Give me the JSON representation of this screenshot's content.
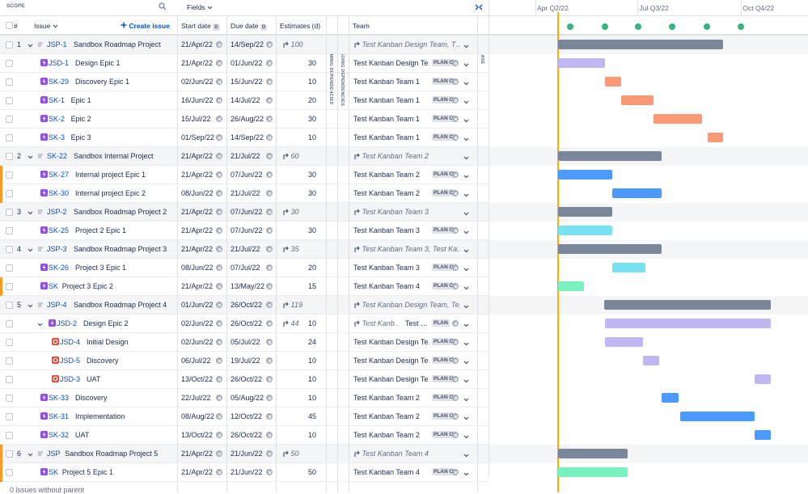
{
  "header": {
    "scope": "SCOPE",
    "fields": "Fields",
    "create_issue": "Create issue",
    "columns": {
      "number": "#",
      "issue": "Issue",
      "start_date": "Start date",
      "start_badge": "D",
      "due_date": "Due date",
      "due_badge": "D",
      "estimates": "Estimates (d)",
      "incoming": "INCOMING DEPENDENCIES",
      "outgoing": "OUTGOING DEPENDENCIES",
      "team": "Team",
      "release": "RELEASE"
    }
  },
  "timeline": {
    "quarters": [
      "Apr Q2/22",
      "Jul Q3/22",
      "Oct Q4/22"
    ]
  },
  "rows": [
    {
      "num": "1",
      "key": "JSP-1",
      "summary": "Sandbox Roadmap Project",
      "level": 0,
      "start": "21/Apr/22",
      "due": "14/Sep/22",
      "estimate_rollup": 100,
      "team_rollup": "Test Kanban Design Team, T…",
      "color": "#7a869a"
    },
    {
      "key": "JSD-1",
      "summary": "Design Epic 1",
      "level": 1,
      "start": "21/Apr/22",
      "due": "01/Jun/22",
      "estimate": 30,
      "team": "Test Kanban Design Te…",
      "badge": "PLAN ONL",
      "color": "#c0b6f2"
    },
    {
      "key": "SK-29",
      "summary": "Discovery Epic 1",
      "level": 1,
      "start": "02/Jun/22",
      "due": "15/Jun/22",
      "estimate": 10,
      "team": "Test Kanban Team 1",
      "badge": "PLAN ONL",
      "color": "#f99976"
    },
    {
      "key": "SK-1",
      "summary": "Epic 1",
      "level": 1,
      "start": "16/Jun/22",
      "due": "14/Jul/22",
      "estimate": 20,
      "team": "Test Kanban Team 1",
      "badge": "PLAN ONL",
      "color": "#f99976"
    },
    {
      "key": "SK-2",
      "summary": "Epic 2",
      "level": 1,
      "start": "15/Jul/22",
      "due": "26/Aug/22",
      "estimate": 30,
      "team": "Test Kanban Team 1",
      "badge": "PLAN ONL",
      "color": "#f99976"
    },
    {
      "key": "SK-3",
      "summary": "Epic 3",
      "level": 1,
      "start": "01/Sep/22",
      "due": "14/Sep/22",
      "estimate": 10,
      "team": "Test Kanban Team 1",
      "badge": "PLAN ONL",
      "color": "#f99976"
    },
    {
      "num": "2",
      "key": "SK-22",
      "summary": "Sandbox Internal Project",
      "level": 0,
      "start": "21/Apr/22",
      "due": "21/Jul/22",
      "estimate_rollup": 60,
      "team_rollup": "Test Kanban Team 2",
      "color": "#7a869a"
    },
    {
      "key": "SK-27",
      "summary": "Internal project Epic 1",
      "level": 1,
      "start": "21/Apr/22",
      "due": "07/Jun/22",
      "estimate": 30,
      "team": "Test Kanban Team 2",
      "badge": "PLAN ONL",
      "color": "#4c9aff"
    },
    {
      "key": "SK-30",
      "summary": "Internal project Epic 2",
      "level": 1,
      "start": "08/Jun/22",
      "due": "21/Jul/22",
      "estimate": 30,
      "team": "Test Kanban Team 2",
      "badge": "PLAN ONL",
      "color": "#4c9aff"
    },
    {
      "num": "3",
      "key": "JSP-2",
      "summary": "Sandbox Roadmap Project 2",
      "level": 0,
      "start": "21/Apr/22",
      "due": "07/Jun/22",
      "estimate_rollup": 30,
      "team_rollup": "Test Kanban Team 3",
      "color": "#7a869a"
    },
    {
      "key": "SK-25",
      "summary": "Project 2 Epic 1",
      "level": 1,
      "start": "21/Apr/22",
      "due": "07/Jun/22",
      "estimate": 30,
      "team": "Test Kanban Team 3",
      "badge": "PLAN ONL",
      "color": "#79e2f2"
    },
    {
      "num": "4",
      "key": "JSP-3",
      "summary": "Sandbox Roadmap Project 3",
      "level": 0,
      "start": "21/Apr/22",
      "due": "21/Jul/22",
      "estimate_rollup": 35,
      "team_rollup": "Test Kanban Team 3, Test Ka…",
      "color": "#7a869a"
    },
    {
      "key": "SK-26",
      "summary": "Project 3 Epic 1",
      "level": 1,
      "start": "08/Jun/22",
      "due": "07/Jul/22",
      "estimate": 20,
      "team": "Test Kanban Team 3",
      "badge": "PLAN ONL",
      "color": "#79e2f2"
    },
    {
      "key": "SK",
      "summary": "Project 3 Epic 2",
      "level": 1,
      "start": "21/Apr/22",
      "due": "13/May/22",
      "estimate": 15,
      "team": "Test Kanban Team 4",
      "badge": "PLAN ONL",
      "color": "#79f2c0"
    },
    {
      "num": "5",
      "key": "JSP-4",
      "summary": "Sandbox Roadmap Project 4",
      "level": 0,
      "start": "01/Jun/22",
      "due": "26/Oct/22",
      "estimate_rollup": 119,
      "team_rollup": "Test Kanban Design Team, Te…",
      "color": "#7a869a"
    },
    {
      "key": "JSD-2",
      "summary": "Design Epic 2",
      "level": 1,
      "start": "02/Jun/22",
      "due": "26/Oct/22",
      "estimate_rollup": 44,
      "estimate": 10,
      "team_rollup": "Test Kanb…",
      "team": "Test …",
      "badge": "PLAN",
      "color": "#c0b6f2"
    },
    {
      "key": "JSD-4",
      "summary": "Initial Design",
      "level": 2,
      "start": "02/Jun/22",
      "due": "05/Jul/22",
      "estimate": 24,
      "team": "Test Kanban Design Te…",
      "badge": "PLAN ONL",
      "color": "#c0b6f2"
    },
    {
      "key": "JSD-5",
      "summary": "Discovery",
      "level": 2,
      "start": "06/Jul/22",
      "due": "19/Jul/22",
      "estimate": 10,
      "team": "Test Kanban Design Te…",
      "badge": "PLAN ONL",
      "color": "#c0b6f2"
    },
    {
      "key": "JSD-3",
      "summary": "UAT",
      "level": 2,
      "start": "13/Oct/22",
      "due": "26/Oct/22",
      "estimate": 10,
      "team": "Test Kanban Design Te…",
      "badge": "PLAN ONL",
      "color": "#c0b6f2"
    },
    {
      "key": "SK-33",
      "summary": "Discovery",
      "level": 1,
      "start": "22/Jul/22",
      "due": "05/Aug/22",
      "estimate": 10,
      "team": "Test Kanban Team 2",
      "badge": "PLAN ONL",
      "color": "#4c9aff"
    },
    {
      "key": "SK-31",
      "summary": "Implementation",
      "level": 1,
      "start": "08/Aug/22",
      "due": "12/Oct/22",
      "estimate": 45,
      "team": "Test Kanban Team 2",
      "badge": "PLAN ONL",
      "color": "#4c9aff"
    },
    {
      "key": "SK-32",
      "summary": "UAT",
      "level": 1,
      "start": "13/Oct/22",
      "due": "26/Oct/22",
      "estimate": 10,
      "team": "Test Kanban Team 2",
      "badge": "PLAN ONL",
      "color": "#4c9aff"
    },
    {
      "num": "6",
      "key": "JSP",
      "summary": "Sandbox Roadmap Project 5",
      "level": 0,
      "start": "21/Apr/22",
      "due": "21/Jun/22",
      "estimate_rollup": 50,
      "team_rollup": "Test Kanban Team 4",
      "color": "#7a869a"
    },
    {
      "key": "SK",
      "summary": "Project 5 Epic 1",
      "level": 1,
      "start": "21/Apr/22",
      "due": "21/Jun/22",
      "estimate": 50,
      "team": "Test Kanban Team 4",
      "badge": "PLAN ONL",
      "color": "#79f2c0"
    }
  ],
  "footer": "0 issues without parent"
}
